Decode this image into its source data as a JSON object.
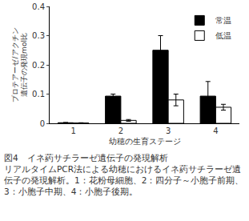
{
  "chart_data": {
    "type": "bar",
    "title": "図4　イネ葯サチラーゼ遺伝子の発現解析",
    "caption": "リアルタイムPCR法による幼穂におけるイネ葯サチラーゼ遺伝子の発現解析。1：花粉母細胞、2：四分子～小胞子前期、3：小胞子中期、4：小胞子後期。",
    "x_label": "幼穂の生育ステージ",
    "y_label": [
      "プロテアーゼ/アクチン",
      "遺伝子の発現mol比"
    ],
    "categories": [
      "1",
      "2",
      "3",
      "4"
    ],
    "series": [
      {
        "name": "常温",
        "color": "#000000",
        "values": [
          0.002,
          0.093,
          0.25,
          0.093
        ],
        "errors": [
          0.001,
          0.007,
          0.05,
          0.05
        ]
      },
      {
        "name": "低温",
        "color": "#ffffff",
        "values": [
          0.001,
          0.01,
          0.08,
          0.055
        ],
        "errors": [
          0.001,
          0.003,
          0.02,
          0.01
        ]
      }
    ],
    "ylim": [
      0,
      0.4
    ],
    "yticks": [
      0,
      0.1,
      0.2,
      0.3,
      0.4
    ],
    "legend": "upper right",
    "grid": false
  }
}
